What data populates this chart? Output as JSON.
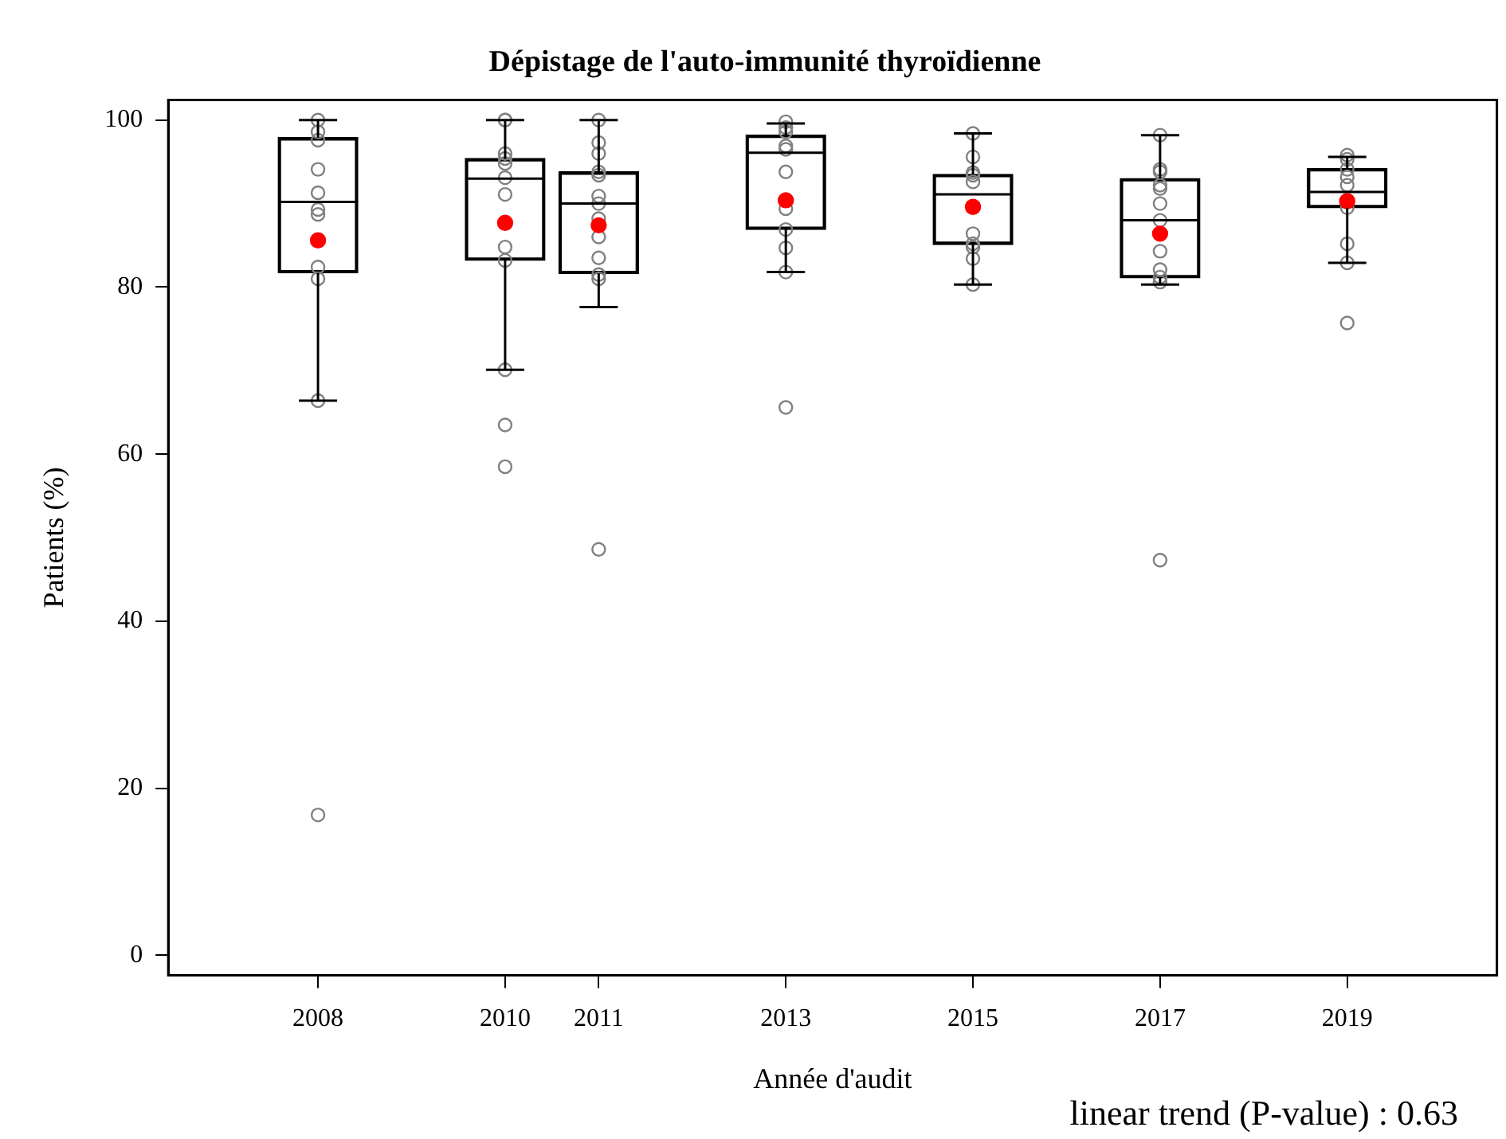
{
  "chart_data": {
    "type": "box",
    "title": "Dépistage de l'auto-immunité thyroïdienne",
    "xlabel": "Année d'audit",
    "ylabel": "Patients (%)",
    "x": [
      2008,
      2010,
      2011,
      2013,
      2015,
      2017,
      2019
    ],
    "xlim": [
      2006.4,
      2020.6
    ],
    "xticks": [
      2008,
      2010,
      2011,
      2013,
      2015,
      2017,
      2019
    ],
    "ylim": [
      -2.4,
      102.4
    ],
    "yticks": [
      0,
      20,
      40,
      60,
      80,
      100
    ],
    "grid": false,
    "legend": false,
    "color": "#000000",
    "boxes": [
      {
        "low": 66.4,
        "q1": 81.7,
        "median": 90.2,
        "q3": 97.9,
        "high": 100
      },
      {
        "low": 70.1,
        "q1": 83.2,
        "median": 93,
        "q3": 95.4,
        "high": 100
      },
      {
        "low": 77.6,
        "q1": 81.6,
        "median": 90,
        "q3": 93.8,
        "high": 100
      },
      {
        "low": 81.8,
        "q1": 86.9,
        "median": 96.1,
        "q3": 98.2,
        "high": 99.6
      },
      {
        "low": 80.3,
        "q1": 85.1,
        "median": 91.1,
        "q3": 93.5,
        "high": 98.4
      },
      {
        "low": 80.3,
        "q1": 81.1,
        "median": 88,
        "q3": 93,
        "high": 98.2
      },
      {
        "low": 82.9,
        "q1": 89.5,
        "median": 91.4,
        "q3": 94.2,
        "high": 95.6
      }
    ],
    "series": [
      {
        "type": "scatter",
        "color": "#808080",
        "marker": "circle",
        "x": [
          2008,
          2008,
          2008,
          2008,
          2008,
          2008,
          2008,
          2008,
          2008,
          2008,
          2008,
          2010,
          2010,
          2010,
          2010,
          2010,
          2010,
          2010,
          2010,
          2010,
          2010,
          2010,
          2010,
          2011,
          2011,
          2011,
          2011,
          2011,
          2011,
          2011,
          2011,
          2011,
          2011,
          2011,
          2011,
          2011,
          2013,
          2013,
          2013,
          2013,
          2013,
          2013,
          2013,
          2013,
          2013,
          2013,
          2013,
          2015,
          2015,
          2015,
          2015,
          2015,
          2015,
          2015,
          2015,
          2015,
          2015,
          2017,
          2017,
          2017,
          2017,
          2017,
          2017,
          2017,
          2017,
          2017,
          2017,
          2017,
          2017,
          2019,
          2019,
          2019,
          2019,
          2019,
          2019,
          2019,
          2019,
          2019
        ],
        "values": [
          100,
          98.6,
          97.6,
          94.1,
          91.3,
          89.3,
          88.7,
          82.4,
          81,
          66.4,
          16.8,
          100,
          100,
          96,
          95.4,
          94.8,
          93.1,
          91.1,
          84.8,
          83.2,
          70.1,
          63.5,
          58.5,
          100,
          97.3,
          96,
          93.8,
          93.4,
          90.9,
          90,
          88.2,
          86,
          83.5,
          81.5,
          81,
          48.6,
          99.8,
          99.1,
          98.6,
          96.9,
          96.5,
          93.8,
          89.4,
          86.9,
          84.7,
          81.8,
          65.6,
          98.4,
          95.6,
          93.7,
          93.4,
          92.6,
          86.4,
          85.2,
          84.8,
          83.4,
          80.3,
          98.2,
          94.1,
          93.8,
          92.2,
          91.8,
          90,
          88,
          84.3,
          82.1,
          81.2,
          80.6,
          47.3,
          95.8,
          95.3,
          94.1,
          93.2,
          92.2,
          89.5,
          85.2,
          82.9,
          75.7
        ]
      },
      {
        "type": "scatter",
        "color": "#ff0000",
        "marker": "circle",
        "x": [
          2008,
          2010,
          2011,
          2013,
          2015,
          2017,
          2019
        ],
        "values": [
          85.6,
          87.7,
          87.4,
          90.4,
          89.6,
          86.4,
          90.3
        ]
      }
    ],
    "annotations": [
      "linear trend (P-value) : 0.63"
    ]
  }
}
